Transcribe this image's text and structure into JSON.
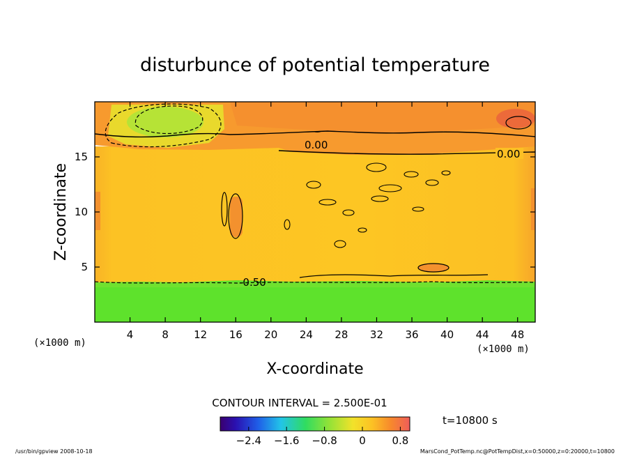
{
  "chart_data": {
    "type": "heatmap",
    "title": "disturbunce of potential temperature",
    "xlabel": "X-coordinate",
    "ylabel": "Z-coordinate",
    "x_unit": "(×1000 m)",
    "z_unit": "(×1000 m)",
    "xlim": [
      0,
      50
    ],
    "ylim": [
      0,
      20
    ],
    "x_ticks": [
      4,
      8,
      12,
      16,
      20,
      24,
      28,
      32,
      36,
      40,
      44,
      48
    ],
    "y_ticks": [
      5,
      10,
      15
    ],
    "contour_interval_text": "CONTOUR INTERVAL = 2.500E-01",
    "contour_labels": [
      {
        "value": "0.00",
        "x": 47.5,
        "z": 15.2
      },
      {
        "value": "0.00",
        "x": 25.0,
        "z": 16.2
      },
      {
        "value": "-0.50",
        "x": 18.0,
        "z": 3.6
      }
    ],
    "colorbar": {
      "ticks": [
        "−2.4",
        "−1.6",
        "−0.8",
        "0",
        "0.8"
      ],
      "tick_values": [
        -2.4,
        -1.6,
        -0.8,
        0,
        0.8
      ],
      "range": [
        -3.0,
        1.0
      ]
    },
    "time_label": "t=10800 s",
    "regions": [
      {
        "desc": "lower layer",
        "z_range": [
          0,
          3.7
        ],
        "value": -0.9
      },
      {
        "desc": "middle layer",
        "z_range": [
          3.7,
          15.3
        ],
        "value": 0.1
      },
      {
        "desc": "upper layer",
        "z_range": [
          15.3,
          20
        ],
        "value": 0.35
      },
      {
        "desc": "cold anomaly",
        "x": 7.5,
        "z": 18.3,
        "value": -0.7
      }
    ]
  },
  "footer": {
    "left": "/usr/bin/gpview   2008-10-18",
    "right": "MarsCond_PotTemp.nc@PotTempDist,x=0:50000,z=0:20000,t=10800"
  },
  "colors": {
    "lower": "#5ee22c",
    "middle": "#fcc224",
    "upper": "#f79a2e",
    "cold": "#a6e43a"
  }
}
